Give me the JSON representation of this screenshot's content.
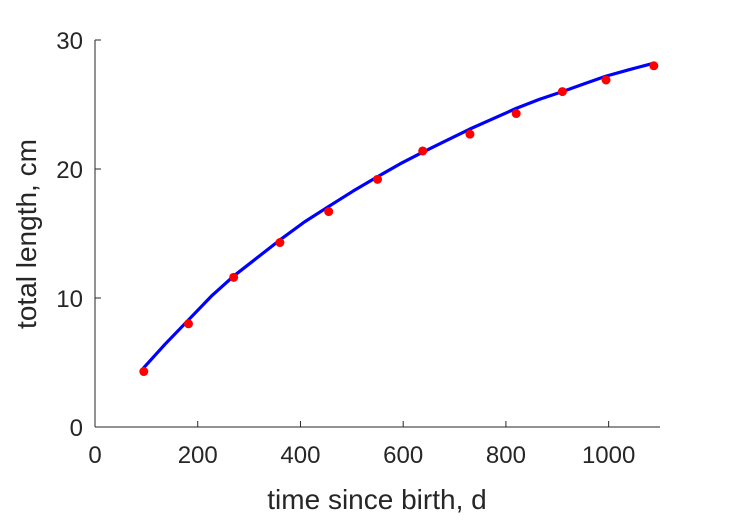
{
  "chart_data": {
    "type": "scatter",
    "title": "",
    "xlabel": "time since birth, d",
    "ylabel": "total length, cm",
    "xlim": [
      0,
      1100
    ],
    "ylim": [
      0,
      30
    ],
    "x_ticks": [
      0,
      200,
      400,
      600,
      800,
      1000
    ],
    "y_ticks": [
      0,
      10,
      20,
      30
    ],
    "grid": false,
    "legend": "none",
    "series": [
      {
        "kind": "points",
        "color": "#ff0000",
        "x": [
          95,
          182,
          270,
          360,
          455,
          550,
          638,
          730,
          820,
          910,
          995,
          1088
        ],
        "y": [
          4.3,
          8.0,
          11.6,
          14.3,
          16.7,
          19.2,
          21.4,
          22.7,
          24.3,
          26.0,
          26.9,
          28.0
        ]
      },
      {
        "kind": "line",
        "color": "#0000ff",
        "x": [
          95,
          136,
          182,
          228,
          270,
          315,
          360,
          408,
          455,
          503,
          550,
          594,
          638,
          684,
          730,
          775,
          820,
          865,
          910,
          952,
          995,
          1040,
          1088
        ],
        "y": [
          4.6,
          6.4,
          8.3,
          10.2,
          11.7,
          13.1,
          14.5,
          15.9,
          17.1,
          18.3,
          19.4,
          20.4,
          21.3,
          22.2,
          23.1,
          23.9,
          24.7,
          25.4,
          26.0,
          26.6,
          27.2,
          27.7,
          28.2
        ]
      }
    ]
  }
}
